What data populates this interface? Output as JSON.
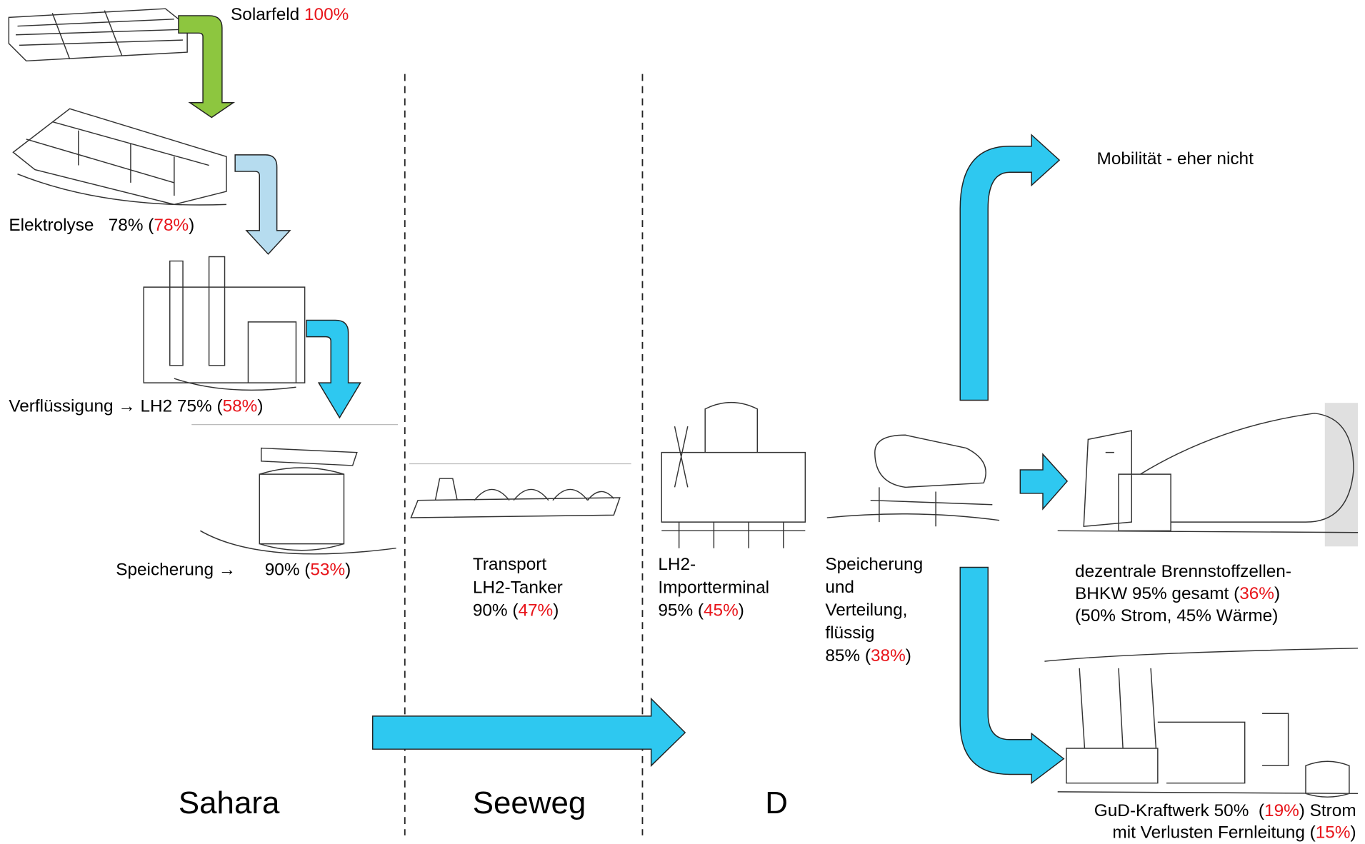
{
  "stages": [
    {
      "lines": [
        [
          "Solarfeld ",
          "100%"
        ]
      ]
    },
    {
      "lines": [
        [
          "Elektrolyse   78% (",
          "78%",
          ")"
        ]
      ]
    },
    {
      "lines": [
        [
          "Verflüssigung → LH2 75% (",
          "58%",
          ")"
        ]
      ]
    },
    {
      "lines": [
        [
          "Speicherung →      90% (",
          "53%",
          ")"
        ]
      ]
    },
    {
      "lines": [
        [
          "Transport"
        ],
        [
          "LH2-Tanker"
        ],
        [
          "90% (",
          "47%",
          ")"
        ]
      ]
    },
    {
      "lines": [
        [
          "LH2-"
        ],
        [
          "Importterminal"
        ],
        [
          "95% (",
          "45%",
          ")"
        ]
      ]
    },
    {
      "lines": [
        [
          "Speicherung"
        ],
        [
          "und"
        ],
        [
          "Verteilung,"
        ],
        [
          "flüssig"
        ],
        [
          "85% (",
          "38%",
          ")"
        ]
      ]
    },
    {
      "lines": [
        [
          "Mobilität - eher nicht"
        ]
      ]
    },
    {
      "lines": [
        [
          "dezentrale Brennstoffzellen-"
        ],
        [
          "BHKW 95% gesamt (",
          "36%",
          ")"
        ],
        [
          "(50% Strom, 45% Wärme)"
        ]
      ]
    },
    {
      "lines": [
        [
          "GuD-Kraftwerk 50%  (",
          "19%",
          ") Strom"
        ],
        [
          "mit Verlusten Fernleitung (",
          "15%",
          ")"
        ]
      ]
    }
  ],
  "regions": [
    "Sahara",
    "Seeweg",
    "D"
  ]
}
